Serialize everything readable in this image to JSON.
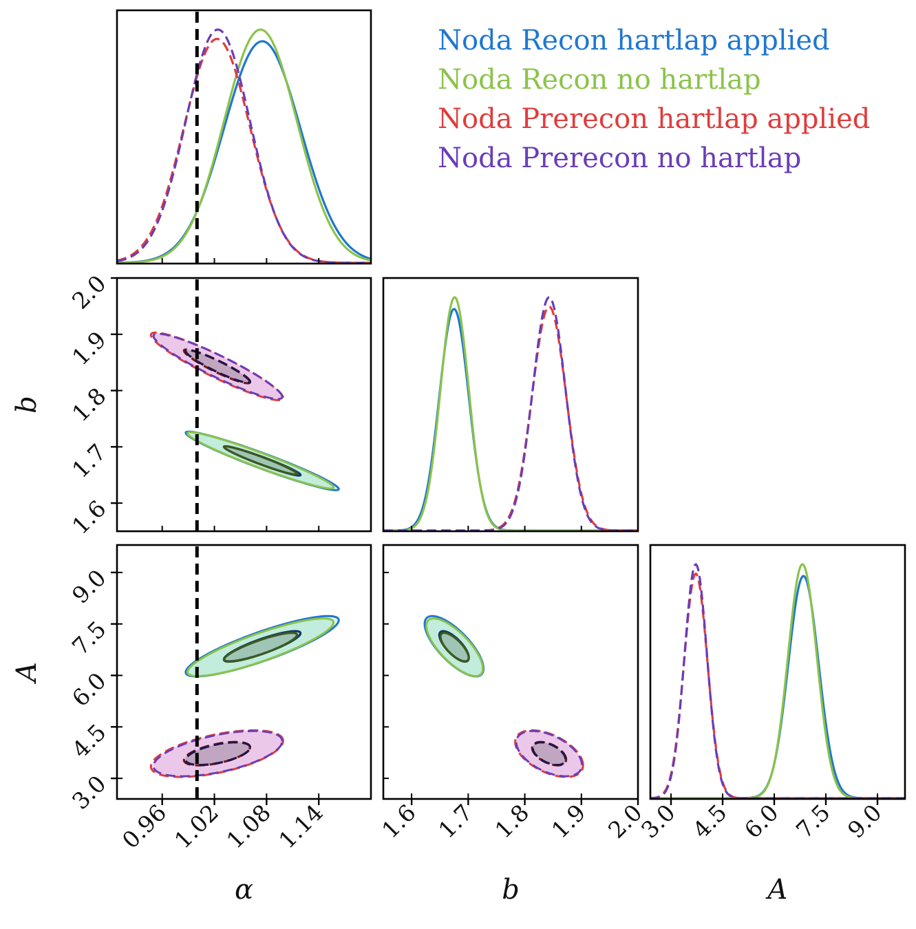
{
  "chart_data": {
    "type": "corner",
    "parameters": [
      {
        "key": "alpha",
        "label": "α",
        "range": [
          0.908,
          1.2
        ],
        "ticks": [
          0.96,
          1.02,
          1.08,
          1.14
        ],
        "tick_labels": [
          "0.96",
          "1.02",
          "1.08",
          "1.14"
        ],
        "truth": 1.0
      },
      {
        "key": "b",
        "label": "b",
        "range": [
          1.55,
          2.0
        ],
        "ticks": [
          1.6,
          1.7,
          1.8,
          1.9,
          2.0
        ],
        "tick_labels": [
          "1.6",
          "1.7",
          "1.8",
          "1.9",
          "2.0"
        ],
        "truth": null
      },
      {
        "key": "A",
        "label": "A",
        "range": [
          2.4,
          9.8
        ],
        "ticks": [
          3.0,
          4.5,
          6.0,
          7.5,
          9.0
        ],
        "tick_labels": [
          "3.0",
          "4.5",
          "6.0",
          "7.5",
          "9.0"
        ],
        "truth": null
      }
    ],
    "series": [
      {
        "name": "Noda Recon hartlap applied",
        "color": "#1f77d0",
        "fill": "#3cc38c",
        "dash": false,
        "peak_scale": 0.95,
        "mean": {
          "alpha": 1.075,
          "b": 1.675,
          "A": 6.85
        },
        "sd": {
          "alpha": 0.044,
          "b": 0.026,
          "A": 0.44
        },
        "corr": {
          "alpha_b": -0.96,
          "alpha_A": 0.86,
          "b_A": -0.74
        }
      },
      {
        "name": "Noda Recon no hartlap",
        "color": "#8bc34a",
        "fill": "#3cc38c",
        "dash": false,
        "peak_scale": 1.0,
        "mean": {
          "alpha": 1.073,
          "b": 1.676,
          "A": 6.82
        },
        "sd": {
          "alpha": 0.042,
          "b": 0.025,
          "A": 0.42
        },
        "corr": {
          "alpha_b": -0.96,
          "alpha_A": 0.86,
          "b_A": -0.74
        }
      },
      {
        "name": "Noda Prerecon hartlap applied",
        "color": "#e03c3c",
        "fill": "#c050b8",
        "dash": true,
        "peak_scale": 0.96,
        "mean": {
          "alpha": 1.023,
          "b": 1.843,
          "A": 3.72
        },
        "sd": {
          "alpha": 0.038,
          "b": 0.03,
          "A": 0.34
        },
        "corr": {
          "alpha_b": -0.93,
          "alpha_A": 0.55,
          "b_A": -0.5
        }
      },
      {
        "name": "Noda Prerecon no hartlap",
        "color": "#6a3db8",
        "fill": "#c050b8",
        "dash": true,
        "peak_scale": 1.0,
        "mean": {
          "alpha": 1.024,
          "b": 1.843,
          "A": 3.72
        },
        "sd": {
          "alpha": 0.037,
          "b": 0.029,
          "A": 0.33
        },
        "corr": {
          "alpha_b": -0.93,
          "alpha_A": 0.55,
          "b_A": -0.5
        }
      }
    ],
    "contour_levels_sigma": [
      1,
      2
    ],
    "legend_placement": "upper-right",
    "grid": false
  }
}
